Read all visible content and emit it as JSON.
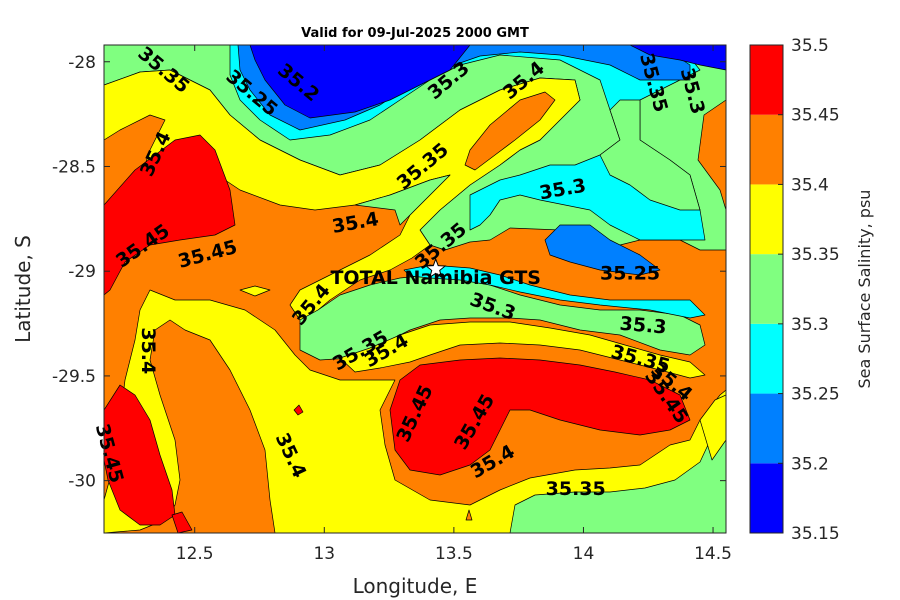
{
  "chart_data": {
    "type": "contour",
    "title": "Valid for 09-Jul-2025 2000 GMT",
    "xlabel": "Longitude, E",
    "ylabel": "Latitude, S",
    "xlim": [
      12.15,
      14.55
    ],
    "ylim": [
      -30.25,
      -27.92
    ],
    "x_ticks": [
      12.5,
      13,
      13.5,
      14,
      14.5
    ],
    "x_tick_labels": [
      "12.5",
      "13",
      "13.5",
      "14",
      "14.5"
    ],
    "y_ticks": [
      -28,
      -28.5,
      -29,
      -29.5,
      -30
    ],
    "y_tick_labels": [
      "-28",
      "-28.5",
      "-29",
      "-29.5",
      "-30"
    ],
    "colorbar": {
      "label": "Sea Surface Salinity, psu",
      "levels": [
        35.15,
        35.2,
        35.25,
        35.3,
        35.35,
        35.4,
        35.45,
        35.5
      ],
      "level_labels": [
        "35.15",
        "35.2",
        "35.25",
        "35.3",
        "35.35",
        "35.4",
        "35.45",
        "35.5"
      ],
      "colors": [
        "#0000ff",
        "#0080ff",
        "#00ffff",
        "#80ff80",
        "#ffff00",
        "#ff8000",
        "#ff0000"
      ]
    },
    "contour_labels": [
      {
        "text": "35.35",
        "lon": 12.38,
        "lat": -28.04,
        "angle": 40
      },
      {
        "text": "35.2",
        "lon": 12.9,
        "lat": -28.1,
        "angle": 40
      },
      {
        "text": "35.25",
        "lon": 12.72,
        "lat": -28.15,
        "angle": 40
      },
      {
        "text": "35.3",
        "lon": 13.48,
        "lat": -28.09,
        "angle": -40
      },
      {
        "text": "35.4",
        "lon": 13.77,
        "lat": -28.09,
        "angle": -40
      },
      {
        "text": "35.35",
        "lon": 14.27,
        "lat": -28.1,
        "angle": 75
      },
      {
        "text": "35.3",
        "lon": 14.42,
        "lat": -28.14,
        "angle": 75
      },
      {
        "text": "35.4",
        "lon": 12.35,
        "lat": -28.44,
        "angle": -65
      },
      {
        "text": "35.35",
        "lon": 13.38,
        "lat": -28.5,
        "angle": -40
      },
      {
        "text": "35.3",
        "lon": 13.92,
        "lat": -28.61,
        "angle": -10
      },
      {
        "text": "35.4",
        "lon": 13.12,
        "lat": -28.77,
        "angle": -10
      },
      {
        "text": "35.45",
        "lon": 12.3,
        "lat": -28.88,
        "angle": -35
      },
      {
        "text": "35.45",
        "lon": 12.55,
        "lat": -28.92,
        "angle": -15
      },
      {
        "text": "35.35",
        "lon": 13.45,
        "lat": -28.88,
        "angle": -40
      },
      {
        "text": "35.25",
        "lon": 14.18,
        "lat": -29.01,
        "angle": 0
      },
      {
        "text": "35.4",
        "lon": 12.95,
        "lat": -29.16,
        "angle": -50
      },
      {
        "text": "35.3",
        "lon": 13.65,
        "lat": -29.17,
        "angle": 20
      },
      {
        "text": "35.3",
        "lon": 14.23,
        "lat": -29.26,
        "angle": 5
      },
      {
        "text": "35.4",
        "lon": 12.32,
        "lat": -29.38,
        "angle": 90
      },
      {
        "text": "35.35",
        "lon": 13.14,
        "lat": -29.38,
        "angle": -30
      },
      {
        "text": "35.4",
        "lon": 13.24,
        "lat": -29.38,
        "angle": -30
      },
      {
        "text": "35.35",
        "lon": 14.22,
        "lat": -29.42,
        "angle": 15
      },
      {
        "text": "35.4",
        "lon": 14.34,
        "lat": -29.53,
        "angle": 40
      },
      {
        "text": "35.45",
        "lon": 14.32,
        "lat": -29.6,
        "angle": 55
      },
      {
        "text": "35.45",
        "lon": 13.35,
        "lat": -29.68,
        "angle": -65
      },
      {
        "text": "35.45",
        "lon": 13.58,
        "lat": -29.72,
        "angle": -60
      },
      {
        "text": "35.4",
        "lon": 13.65,
        "lat": -29.91,
        "angle": -30
      },
      {
        "text": "35.4",
        "lon": 12.87,
        "lat": -29.88,
        "angle": 65
      },
      {
        "text": "35.45",
        "lon": 12.17,
        "lat": -29.87,
        "angle": 75
      },
      {
        "text": "35.35",
        "lon": 13.97,
        "lat": -30.04,
        "angle": 0
      }
    ],
    "station": {
      "name": "TOTAL Namibia GTS",
      "lon": 13.43,
      "lat": -28.99,
      "marker": "star"
    }
  }
}
